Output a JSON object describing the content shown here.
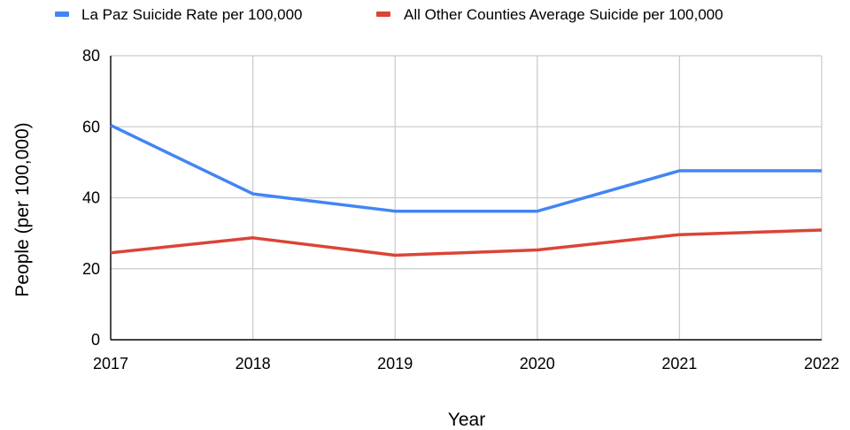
{
  "chart_data": {
    "type": "line",
    "categories": [
      "2017",
      "2018",
      "2019",
      "2020",
      "2021",
      "2022"
    ],
    "series": [
      {
        "name": "La Paz Suicide Rate per 100,000",
        "color": "#4285f4",
        "values": [
          60.4,
          41.1,
          36.2,
          36.2,
          47.6,
          47.6
        ]
      },
      {
        "name": "All Other Counties Average Suicide per 100,000",
        "color": "#db4437",
        "values": [
          24.5,
          28.7,
          23.8,
          25.3,
          29.6,
          30.9
        ]
      }
    ],
    "xlabel": "Year",
    "ylabel": "People (per 100,000)",
    "ylim": [
      0,
      80
    ],
    "yticks": [
      "0",
      "20",
      "40",
      "60",
      "80"
    ],
    "grid": true,
    "legend_position": "top-left"
  }
}
